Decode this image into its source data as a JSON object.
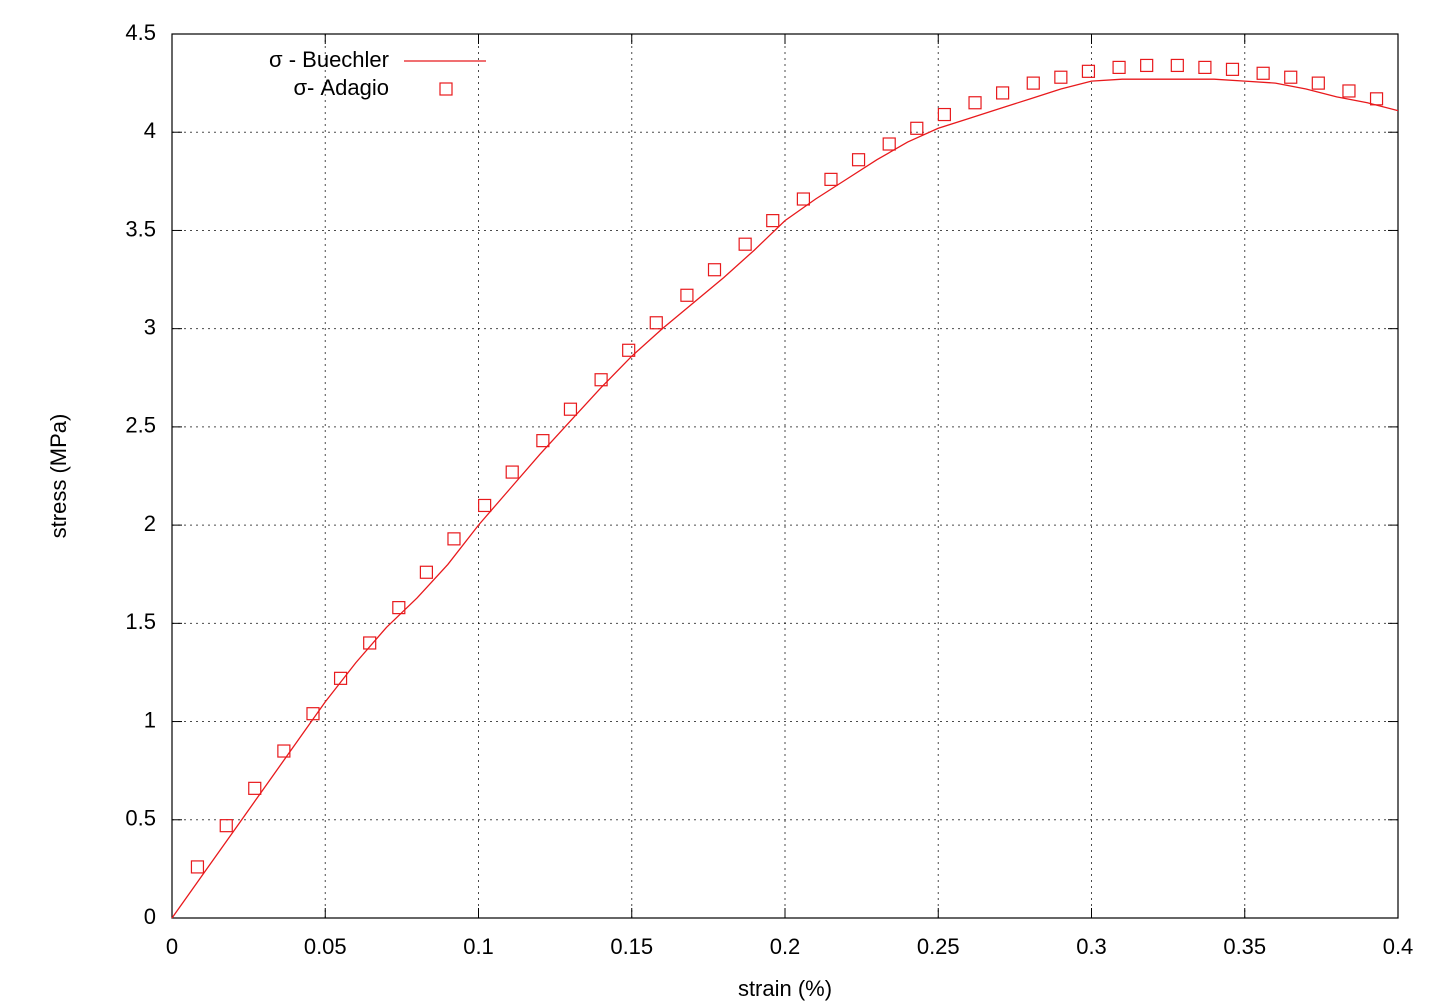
{
  "chart_data": {
    "type": "line-scatter",
    "xlabel": "strain (%)",
    "ylabel": "stress (MPa)",
    "xlim": [
      0,
      0.4
    ],
    "ylim": [
      0,
      4.5
    ],
    "xticks": [
      0,
      0.05,
      0.1,
      0.15,
      0.2,
      0.25,
      0.3,
      0.35,
      0.4
    ],
    "yticks": [
      0,
      0.5,
      1,
      1.5,
      2,
      2.5,
      3,
      3.5,
      4,
      4.5
    ],
    "grid": true,
    "legend": "upper-left",
    "series": [
      {
        "name": "σ - Buechler",
        "type": "line",
        "color": "#e8191c",
        "x": [
          0,
          0.01,
          0.02,
          0.03,
          0.04,
          0.05,
          0.06,
          0.07,
          0.08,
          0.09,
          0.1,
          0.11,
          0.12,
          0.13,
          0.14,
          0.15,
          0.16,
          0.17,
          0.18,
          0.19,
          0.2,
          0.21,
          0.22,
          0.23,
          0.24,
          0.25,
          0.26,
          0.27,
          0.28,
          0.29,
          0.3,
          0.31,
          0.32,
          0.33,
          0.34,
          0.35,
          0.36,
          0.37,
          0.38,
          0.39,
          0.4
        ],
        "values": [
          0,
          0.22,
          0.44,
          0.66,
          0.88,
          1.1,
          1.3,
          1.48,
          1.63,
          1.8,
          2.0,
          2.18,
          2.36,
          2.53,
          2.7,
          2.86,
          3.0,
          3.13,
          3.26,
          3.4,
          3.55,
          3.66,
          3.76,
          3.86,
          3.95,
          4.02,
          4.07,
          4.12,
          4.17,
          4.22,
          4.26,
          4.27,
          4.27,
          4.27,
          4.27,
          4.26,
          4.25,
          4.22,
          4.18,
          4.15,
          4.11
        ]
      },
      {
        "name": "σ- Adagio",
        "type": "scatter",
        "color": "#e8191c",
        "x": [
          0.0083,
          0.0177,
          0.027,
          0.0365,
          0.046,
          0.055,
          0.0645,
          0.074,
          0.083,
          0.092,
          0.102,
          0.111,
          0.121,
          0.13,
          0.14,
          0.149,
          0.158,
          0.168,
          0.177,
          0.187,
          0.196,
          0.206,
          0.215,
          0.224,
          0.234,
          0.243,
          0.252,
          0.262,
          0.271,
          0.281,
          0.29,
          0.299,
          0.309,
          0.318,
          0.328,
          0.337,
          0.346,
          0.356,
          0.365,
          0.374,
          0.384,
          0.393
        ],
        "values": [
          0.26,
          0.47,
          0.66,
          0.85,
          1.04,
          1.22,
          1.4,
          1.58,
          1.76,
          1.93,
          2.1,
          2.27,
          2.43,
          2.59,
          2.74,
          2.89,
          3.03,
          3.17,
          3.3,
          3.43,
          3.55,
          3.66,
          3.76,
          3.86,
          3.94,
          4.02,
          4.09,
          4.15,
          4.2,
          4.25,
          4.28,
          4.31,
          4.33,
          4.34,
          4.34,
          4.33,
          4.32,
          4.3,
          4.28,
          4.25,
          4.21,
          4.17
        ]
      }
    ]
  }
}
